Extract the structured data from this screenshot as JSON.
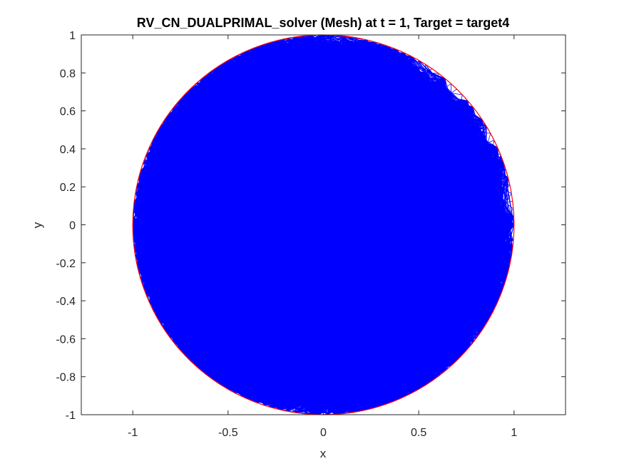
{
  "chart_data": {
    "type": "scatter",
    "title": "RV_CN_DUALPRIMAL_solver (Mesh) at t = 1, Target = target4",
    "xlabel": "x",
    "ylabel": "y",
    "xlim": [
      -1.27,
      1.27
    ],
    "ylim": [
      -1,
      1
    ],
    "x_ticks": [
      -1,
      -0.5,
      0,
      0.5,
      1
    ],
    "x_tick_labels": [
      "-1",
      "-0.5",
      "0",
      "0.5",
      "1"
    ],
    "y_ticks": [
      -1,
      -0.8,
      -0.6,
      -0.4,
      -0.2,
      0,
      0.2,
      0.4,
      0.6,
      0.8,
      1
    ],
    "y_tick_labels": [
      "-1",
      "-0.8",
      "-0.6",
      "-0.4",
      "-0.2",
      "0",
      "0.2",
      "0.4",
      "0.6",
      "0.8",
      "1"
    ],
    "grid": false,
    "series": [
      {
        "kind": "mesh",
        "color": "#0000ff",
        "domain": "unit disk",
        "center": [
          0,
          0
        ],
        "radius": 1
      },
      {
        "kind": "boundary",
        "color": "#ff0000",
        "shape": "circle",
        "center": [
          0,
          0
        ],
        "radius": 1
      }
    ]
  }
}
